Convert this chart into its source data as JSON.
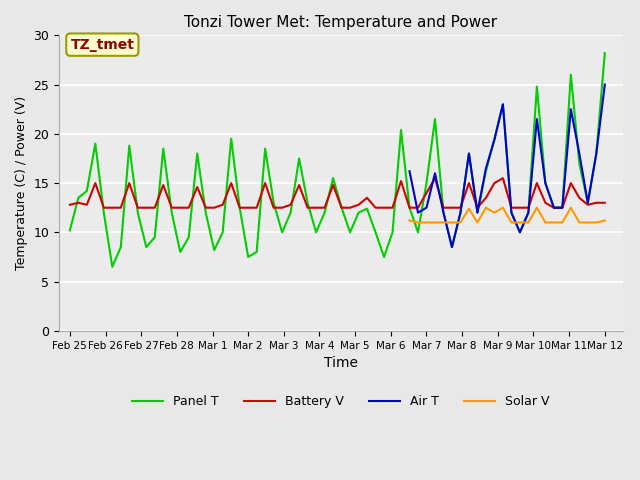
{
  "title": "Tonzi Tower Met: Temperature and Power",
  "xlabel": "Time",
  "ylabel": "Temperature (C) / Power (V)",
  "annotation": "TZ_tmet",
  "ylim": [
    0,
    30
  ],
  "yticks": [
    0,
    5,
    10,
    15,
    20,
    25,
    30
  ],
  "bg_color": "#e8e8e8",
  "plot_bg": "#ebebeb",
  "legend_labels": [
    "Panel T",
    "Battery V",
    "Air T",
    "Solar V"
  ],
  "legend_colors": [
    "#00cc00",
    "#cc0000",
    "#0000cc",
    "#ff9900"
  ],
  "xtick_labels": [
    "Feb 25",
    "Feb 26",
    "Feb 27",
    "Feb 28",
    "Mar 1",
    "Mar 2",
    "Mar 3",
    "Mar 4",
    "Mar 5",
    "Mar 6",
    "Mar 7",
    "Mar 8",
    "Mar 9",
    "Mar 10",
    "Mar 11",
    "Mar 12"
  ],
  "xtick_positions": [
    0,
    1,
    2,
    3,
    4,
    5,
    6,
    7,
    8,
    9,
    10,
    11,
    12,
    13,
    14,
    15
  ],
  "panel_t": [
    10.2,
    13.5,
    14.2,
    19.0,
    12.0,
    6.5,
    8.5,
    18.8,
    12.0,
    8.5,
    9.5,
    18.5,
    12.0,
    8.0,
    9.5,
    18.0,
    12.0,
    8.2,
    10.0,
    19.5,
    12.5,
    7.5,
    8.0,
    18.5,
    13.0,
    10.0,
    12.0,
    17.5,
    13.0,
    10.0,
    12.0,
    15.5,
    12.5,
    10.0,
    12.0,
    12.4,
    10.0,
    7.5,
    10.0,
    20.4,
    12.5,
    10.0,
    15.0,
    21.5,
    12.0,
    8.5,
    12.0,
    18.0,
    12.0,
    16.2,
    19.5,
    23.0,
    12.0,
    10.0,
    12.0,
    24.8,
    15.0,
    12.5,
    12.5,
    26.0,
    17.0,
    13.0,
    18.0,
    28.2
  ],
  "battery_v": [
    12.8,
    13.0,
    12.8,
    15.0,
    12.5,
    12.5,
    12.5,
    15.0,
    12.5,
    12.5,
    12.5,
    14.8,
    12.5,
    12.5,
    12.5,
    14.6,
    12.5,
    12.5,
    12.8,
    15.0,
    12.5,
    12.5,
    12.5,
    15.0,
    12.5,
    12.5,
    12.8,
    14.8,
    12.5,
    12.5,
    12.5,
    14.8,
    12.5,
    12.5,
    12.8,
    13.5,
    12.5,
    12.5,
    12.5,
    15.2,
    12.5,
    12.5,
    14.0,
    15.5,
    12.5,
    12.5,
    12.5,
    15.0,
    12.5,
    13.5,
    15.0,
    15.5,
    12.5,
    12.5,
    12.5,
    15.0,
    13.0,
    12.5,
    12.5,
    15.0,
    13.5,
    12.8,
    13.0,
    13.0
  ],
  "air_t": [
    null,
    null,
    null,
    null,
    null,
    null,
    null,
    null,
    null,
    null,
    null,
    null,
    null,
    null,
    null,
    null,
    null,
    null,
    null,
    null,
    null,
    null,
    null,
    null,
    null,
    null,
    null,
    null,
    null,
    null,
    null,
    null,
    null,
    null,
    null,
    null,
    null,
    null,
    null,
    null,
    16.2,
    12.0,
    12.5,
    16.0,
    12.0,
    8.5,
    12.0,
    18.0,
    12.0,
    16.5,
    19.4,
    23.0,
    12.0,
    10.0,
    12.0,
    21.5,
    15.0,
    12.5,
    12.5,
    22.5,
    18.0,
    13.0,
    18.0,
    25.0
  ],
  "solar_v": [
    null,
    null,
    null,
    null,
    null,
    null,
    null,
    null,
    null,
    null,
    null,
    null,
    null,
    null,
    null,
    null,
    null,
    null,
    null,
    null,
    null,
    null,
    null,
    null,
    null,
    null,
    null,
    null,
    null,
    null,
    null,
    null,
    null,
    null,
    null,
    null,
    null,
    null,
    null,
    null,
    11.2,
    11.0,
    11.0,
    11.0,
    11.0,
    11.0,
    11.0,
    12.4,
    11.0,
    12.5,
    12.0,
    12.5,
    11.0,
    11.0,
    11.0,
    12.5,
    11.0,
    11.0,
    11.0,
    12.5,
    11.0,
    11.0,
    11.0,
    11.2
  ],
  "num_points": 64,
  "days_start": 0,
  "days_end": 15
}
